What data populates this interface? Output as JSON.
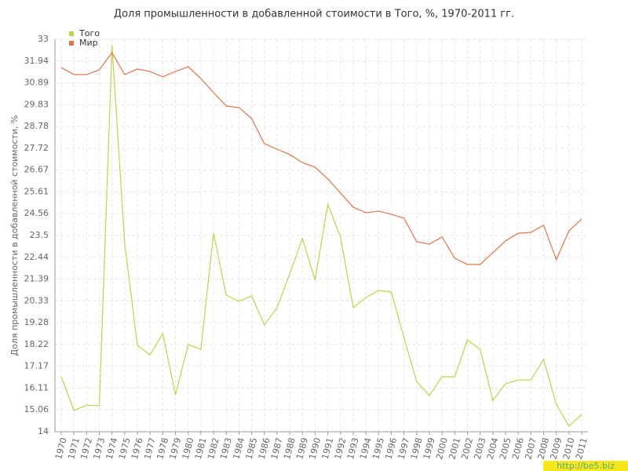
{
  "chart_data": {
    "type": "line",
    "title": "Доля промышленности в добавленной стоимости в Того, %, 1970-2011 гг.",
    "y_label": "Доля промышленности в добавленной стоимости, %",
    "watermark": "http://be5.biz",
    "legend": "top-left",
    "grid": true,
    "categories": [
      "1970",
      "1971",
      "1972",
      "1973",
      "1974",
      "1975",
      "1976",
      "1977",
      "1978",
      "1979",
      "1980",
      "1981",
      "1982",
      "1983",
      "1984",
      "1985",
      "1986",
      "1987",
      "1988",
      "1989",
      "1990",
      "1991",
      "1992",
      "1993",
      "1994",
      "1995",
      "1996",
      "1997",
      "1998",
      "1999",
      "2000",
      "2001",
      "2002",
      "2003",
      "2004",
      "2005",
      "2006",
      "2007",
      "2008",
      "2009",
      "2010",
      "2011"
    ],
    "series": [
      {
        "name": "Того",
        "color": "#b5d94a",
        "values": [
          16.66,
          15.03,
          15.29,
          15.26,
          32.7,
          23.12,
          18.18,
          17.73,
          18.75,
          15.79,
          18.22,
          17.99,
          23.61,
          20.61,
          20.31,
          20.58,
          19.17,
          20.01,
          21.64,
          23.35,
          21.34,
          25.02,
          23.42,
          20.01,
          20.5,
          20.84,
          20.77,
          18.56,
          16.43,
          15.75,
          16.66,
          16.66,
          18.45,
          17.99,
          15.52,
          16.32,
          16.51,
          16.51,
          17.5,
          15.33,
          14.27,
          14.84
        ]
      },
      {
        "name": "Мир",
        "color": "#e0744a",
        "values": [
          31.63,
          31.29,
          31.29,
          31.52,
          32.35,
          31.29,
          31.56,
          31.44,
          31.18,
          31.44,
          31.67,
          31.1,
          30.42,
          29.77,
          29.69,
          29.16,
          27.95,
          27.68,
          27.42,
          27.03,
          26.81,
          26.24,
          25.56,
          24.87,
          24.6,
          24.68,
          24.53,
          24.34,
          23.2,
          23.08,
          23.43,
          22.4,
          22.1,
          22.1,
          22.67,
          23.24,
          23.61,
          23.65,
          24.0,
          22.33,
          23.73,
          24.3
        ]
      }
    ],
    "ylim": [
      14,
      33
    ],
    "yticks": [
      14,
      15.06,
      16.11,
      17.17,
      18.22,
      19.28,
      20.33,
      21.39,
      22.44,
      23.5,
      24.56,
      25.61,
      26.67,
      27.72,
      28.78,
      29.83,
      30.89,
      31.94,
      33
    ]
  }
}
